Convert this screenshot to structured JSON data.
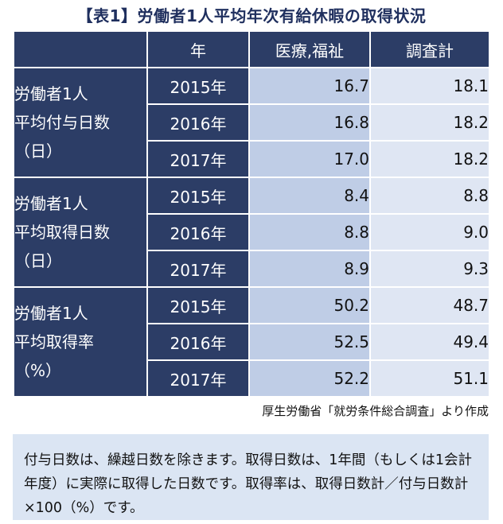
{
  "title": "【表1】労働者1人平均年次有給休暇の取得状況",
  "table": {
    "headers": {
      "year": "年",
      "col1": "医療,福祉",
      "col2": "調査計"
    },
    "groups": [
      {
        "label_lines": [
          "労働者1人",
          "平均付与日数",
          "（日）"
        ],
        "rows": [
          {
            "year": "2015年",
            "v1": "16.7",
            "v2": "18.1"
          },
          {
            "year": "2016年",
            "v1": "16.8",
            "v2": "18.2"
          },
          {
            "year": "2017年",
            "v1": "17.0",
            "v2": "18.2"
          }
        ]
      },
      {
        "label_lines": [
          "労働者1人",
          "平均取得日数",
          "（日）"
        ],
        "rows": [
          {
            "year": "2015年",
            "v1": "8.4",
            "v2": "8.8"
          },
          {
            "year": "2016年",
            "v1": "8.8",
            "v2": "9.0"
          },
          {
            "year": "2017年",
            "v1": "8.9",
            "v2": "9.3"
          }
        ]
      },
      {
        "label_lines": [
          "労働者1人",
          "平均取得率",
          "（%）"
        ],
        "rows": [
          {
            "year": "2015年",
            "v1": "50.2",
            "v2": "48.7"
          },
          {
            "year": "2016年",
            "v1": "52.5",
            "v2": "49.4"
          },
          {
            "year": "2017年",
            "v1": "52.2",
            "v2": "51.1"
          }
        ]
      }
    ]
  },
  "source": "厚生労働省「就労条件総合調査」より作成",
  "note": "付与日数は、繰越日数を除きます。取得日数は、1年間（もしくは1会計年度）に実際に取得した日数です。取得率は、取得日数計／付与日数計×100（%）です。",
  "colors": {
    "header_bg": "#2c3d66",
    "col1_bg": "#bfcde6",
    "col2_bg": "#dfe6f3",
    "note_bg": "#dbe5f3",
    "title": "#1f2f5e"
  }
}
